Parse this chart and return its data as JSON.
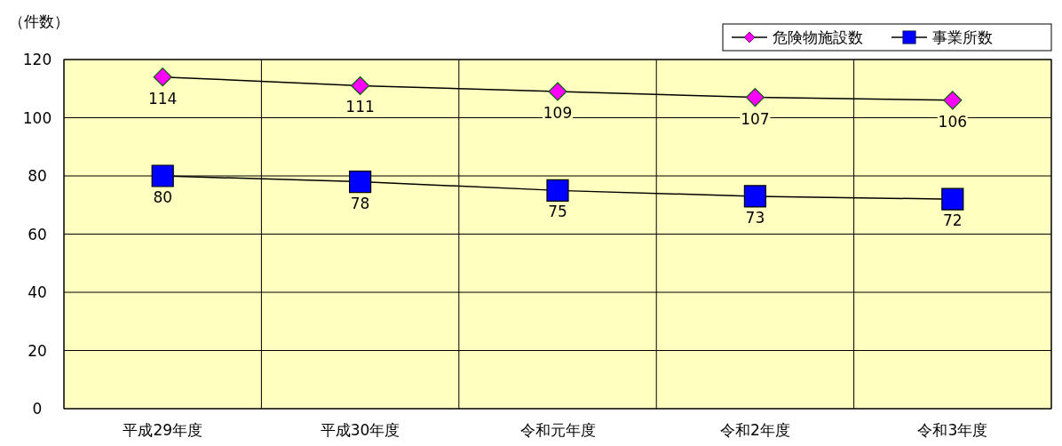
{
  "chart_data": {
    "type": "line",
    "ylabel": "（件数）",
    "categories": [
      "平成29年度",
      "平成30年度",
      "令和元年度",
      "令和2年度",
      "令和3年度"
    ],
    "series": [
      {
        "name": "危険物施設数",
        "color": "#ff00ff",
        "marker": "diamond",
        "values": [
          114,
          111,
          109,
          107,
          106
        ]
      },
      {
        "name": "事業所数",
        "color": "#0000ff",
        "marker": "square",
        "values": [
          80,
          78,
          75,
          73,
          72
        ]
      }
    ],
    "ylim": [
      0,
      120
    ],
    "yticks": [
      0,
      20,
      40,
      60,
      80,
      100,
      120
    ],
    "grid": true,
    "legend": "top right",
    "data_labels": true
  }
}
